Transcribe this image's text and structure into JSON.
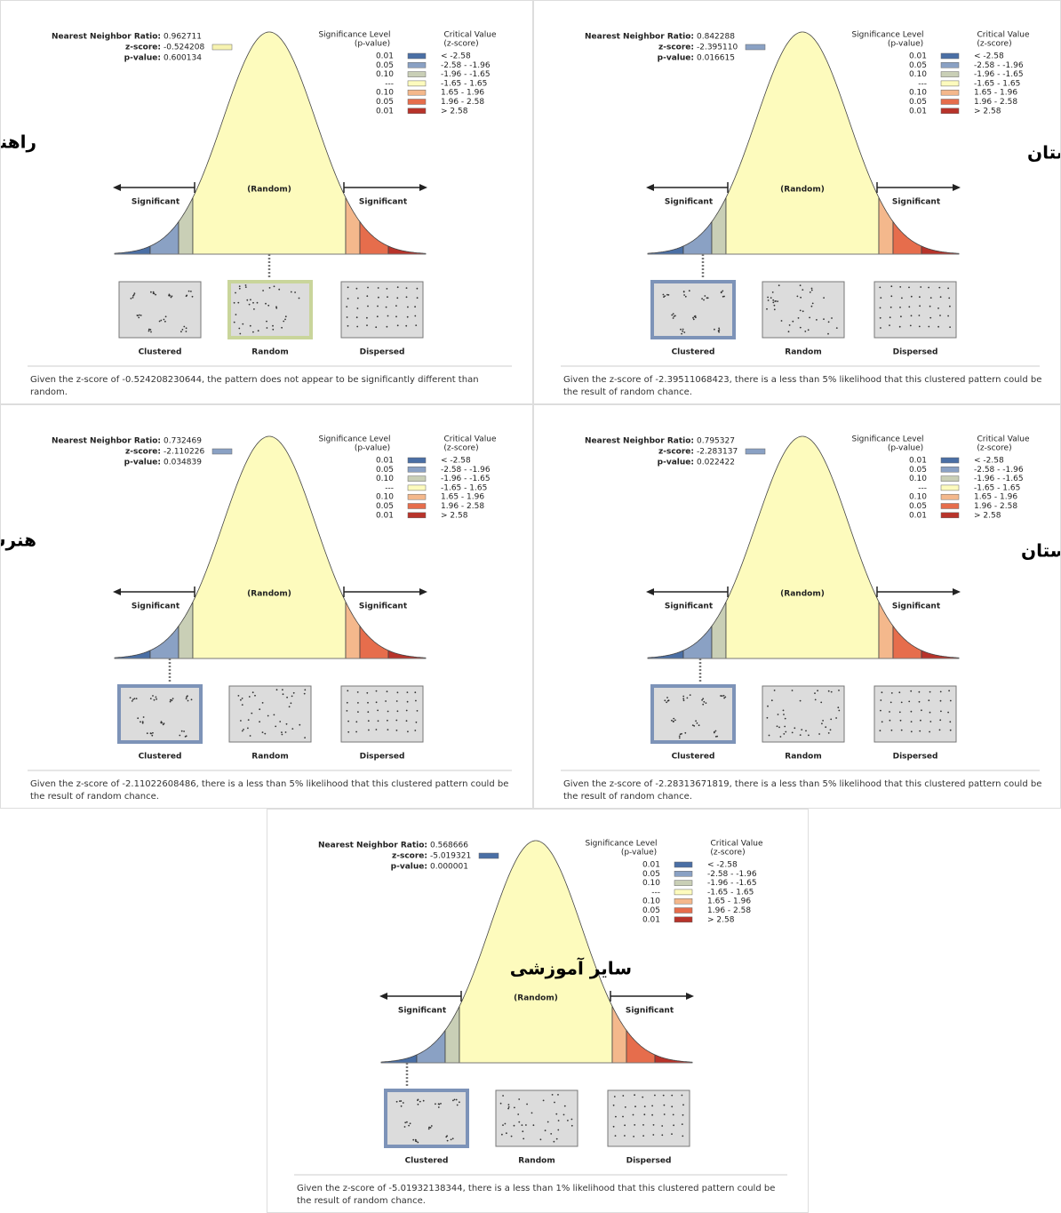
{
  "common": {
    "ratio_label": "Nearest Neighbor Ratio:",
    "z_label": "z-score:",
    "p_label": "p-value:",
    "sig_header": "Significance Level",
    "sig_sub": "(p-value)",
    "crit_header": "Critical Value",
    "crit_sub": "(z-score)",
    "levels": [
      "0.01",
      "0.05",
      "0.10",
      "---",
      "0.10",
      "0.05",
      "0.01"
    ],
    "critical": [
      "< -2.58",
      "-2.58 - -1.96",
      "-1.96 - -1.65",
      "-1.65 - 1.65",
      "1.65 - 1.96",
      "1.96 - 2.58",
      "> 2.58"
    ],
    "significant": "Significant",
    "random_center": "(Random)",
    "patterns": [
      "Clustered",
      "Random",
      "Dispersed"
    ]
  },
  "panels": [
    {
      "label": "راهنمایی",
      "ratio": "0.962711",
      "z": "-0.524208",
      "p": "0.600134",
      "summary": "Given the z-score of -0.524208230644, the pattern does not appear to be significantly different than random."
    },
    {
      "label": "دبستان",
      "ratio": "0.842288",
      "z": "-2.395110",
      "p": "0.016615",
      "summary": "Given the z-score of -2.39511068423, there is a less than 5% likelihood that this clustered pattern could be the result of random chance."
    },
    {
      "label": "هنرستان",
      "ratio": "0.732469",
      "z": "-2.110226",
      "p": "0.034839",
      "summary": "Given the z-score of -2.11022608486, there is a less than 5% likelihood that this clustered pattern could be the result of random chance."
    },
    {
      "label": "دبیرستان",
      "ratio": "0.795327",
      "z": "-2.283137",
      "p": "0.022422",
      "summary": "Given the z-score of -2.28313671819, there is a less than 5% likelihood that this clustered pattern could be the result of random chance."
    },
    {
      "label": "سایر آموزشی",
      "ratio": "0.568666",
      "z": "-5.019321",
      "p": "0.000001",
      "summary": "Given the z-score of -5.01932138344, there is a less than 1% likelihood that this clustered pattern could be the result of random chance."
    }
  ]
}
